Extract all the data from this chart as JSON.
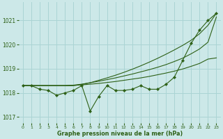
{
  "xlabel": "Graphe pression niveau de la mer (hPa)",
  "bg_color": "#cce8e8",
  "grid_color": "#aad4d4",
  "line_color": "#2d6016",
  "x": [
    0,
    1,
    2,
    3,
    4,
    5,
    6,
    7,
    8,
    9,
    10,
    11,
    12,
    13,
    14,
    15,
    16,
    17,
    18,
    19,
    20,
    21,
    22,
    23
  ],
  "y_main": [
    1018.3,
    1018.3,
    1018.15,
    1018.1,
    1017.9,
    1018.0,
    1018.1,
    1018.3,
    1017.25,
    1017.85,
    1018.3,
    1018.1,
    1018.1,
    1018.15,
    1018.3,
    1018.15,
    1018.15,
    1018.35,
    1018.65,
    1019.35,
    1020.05,
    1020.6,
    1021.0,
    1021.3
  ],
  "y_line1": [
    1018.3,
    1018.3,
    1018.3,
    1018.3,
    1018.3,
    1018.3,
    1018.3,
    1018.35,
    1018.42,
    1018.52,
    1018.62,
    1018.73,
    1018.85,
    1018.98,
    1019.12,
    1019.27,
    1019.43,
    1019.6,
    1019.78,
    1019.97,
    1020.18,
    1020.45,
    1020.8,
    1021.3
  ],
  "y_line2": [
    1018.3,
    1018.3,
    1018.3,
    1018.3,
    1018.3,
    1018.3,
    1018.32,
    1018.36,
    1018.42,
    1018.48,
    1018.55,
    1018.62,
    1018.7,
    1018.78,
    1018.87,
    1018.96,
    1019.06,
    1019.17,
    1019.3,
    1019.44,
    1019.62,
    1019.82,
    1020.1,
    1021.15
  ],
  "y_line3": [
    1018.3,
    1018.3,
    1018.3,
    1018.3,
    1018.3,
    1018.3,
    1018.31,
    1018.33,
    1018.36,
    1018.39,
    1018.43,
    1018.47,
    1018.52,
    1018.57,
    1018.62,
    1018.68,
    1018.75,
    1018.82,
    1018.9,
    1018.99,
    1019.1,
    1019.22,
    1019.4,
    1019.45
  ],
  "ylim": [
    1016.75,
    1021.75
  ],
  "yticks": [
    1017,
    1018,
    1019,
    1020,
    1021
  ],
  "xlim": [
    -0.5,
    23.5
  ],
  "xticks": [
    0,
    1,
    2,
    3,
    4,
    5,
    6,
    7,
    8,
    9,
    10,
    11,
    12,
    13,
    14,
    15,
    16,
    17,
    18,
    19,
    20,
    21,
    22,
    23
  ]
}
